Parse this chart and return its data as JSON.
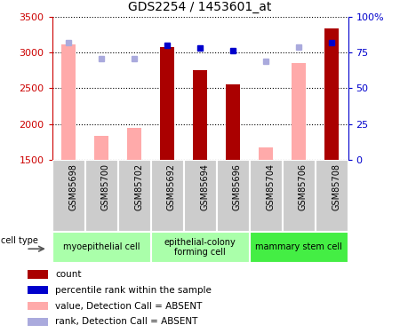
{
  "title": "GDS2254 / 1453601_at",
  "samples": [
    "GSM85698",
    "GSM85700",
    "GSM85702",
    "GSM85692",
    "GSM85694",
    "GSM85696",
    "GSM85704",
    "GSM85706",
    "GSM85708"
  ],
  "bar_values": [
    null,
    null,
    null,
    3080,
    2750,
    2555,
    null,
    null,
    3340
  ],
  "bar_absent_values": [
    3110,
    1830,
    1950,
    null,
    null,
    null,
    1670,
    2850,
    null
  ],
  "rank_present_pct": [
    null,
    null,
    null,
    80,
    78,
    76,
    null,
    null,
    82
  ],
  "rank_absent_pct": [
    82,
    71,
    71,
    null,
    null,
    null,
    69,
    79,
    null
  ],
  "ylim_left": [
    1500,
    3500
  ],
  "ylim_right": [
    0,
    100
  ],
  "yticks_left": [
    1500,
    2000,
    2500,
    3000,
    3500
  ],
  "yticks_right": [
    0,
    25,
    50,
    75,
    100
  ],
  "ytick_labels_right": [
    "0",
    "25",
    "50",
    "75",
    "100%"
  ],
  "bar_color_present": "#aa0000",
  "bar_color_absent": "#ffaaaa",
  "rank_color_present": "#0000cc",
  "rank_color_absent": "#aaaadd",
  "bar_width": 0.45,
  "group_info": [
    {
      "start": 0,
      "end": 3,
      "label": "myoepithelial cell",
      "color": "#aaffaa"
    },
    {
      "start": 3,
      "end": 6,
      "label": "epithelial-colony\nforming cell",
      "color": "#aaffaa"
    },
    {
      "start": 6,
      "end": 9,
      "label": "mammary stem cell",
      "color": "#44ee44"
    }
  ],
  "legend_items": [
    {
      "color": "#aa0000",
      "label": "count"
    },
    {
      "color": "#0000cc",
      "label": "percentile rank within the sample"
    },
    {
      "color": "#ffaaaa",
      "label": "value, Detection Call = ABSENT"
    },
    {
      "color": "#aaaadd",
      "label": "rank, Detection Call = ABSENT"
    }
  ],
  "ylabel_left_color": "#cc0000",
  "ylabel_right_color": "#0000cc",
  "sample_box_color": "#cccccc",
  "cell_type_label": "cell type"
}
